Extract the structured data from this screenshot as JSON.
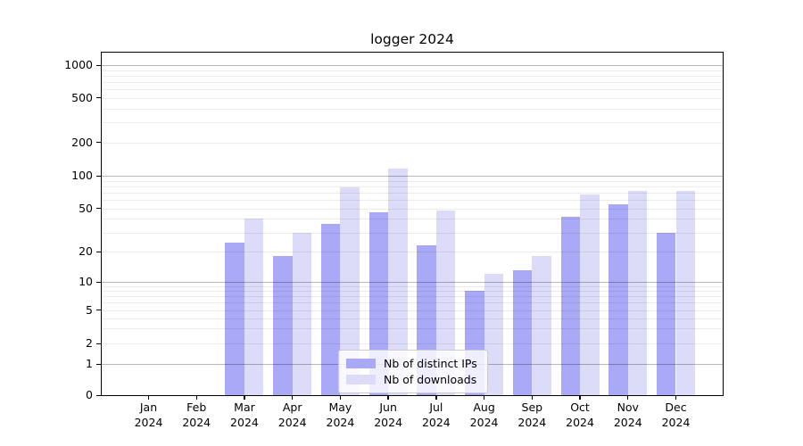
{
  "chart_data": {
    "type": "bar",
    "title": "logger 2024",
    "categories": [
      "Jan 2024",
      "Feb 2024",
      "Mar 2024",
      "Apr 2024",
      "May 2024",
      "Jun 2024",
      "Jul 2024",
      "Aug 2024",
      "Sep 2024",
      "Oct 2024",
      "Nov 2024",
      "Dec 2024"
    ],
    "series": [
      {
        "name": "Nb of distinct IPs",
        "color": "#a9a9f7",
        "values": [
          0,
          0,
          24,
          18,
          36,
          46,
          23,
          8,
          13,
          42,
          54,
          30
        ]
      },
      {
        "name": "Nb of downloads",
        "color": "#dcdcf9",
        "values": [
          0,
          0,
          40,
          30,
          78,
          115,
          48,
          12,
          18,
          67,
          73,
          72
        ]
      }
    ],
    "yaxis": {
      "scale": "symlog",
      "tick_labels": [
        "0",
        "1",
        "2",
        "5",
        "10",
        "20",
        "50",
        "100",
        "200",
        "500",
        "1000"
      ],
      "tick_values": [
        0,
        1,
        2,
        5,
        10,
        20,
        50,
        100,
        200,
        500,
        1000
      ],
      "ylim_top": 1300
    },
    "xlabel": "",
    "ylabel": "",
    "grid": "on",
    "legend_position": "lower center",
    "grid_minor_color": "#ececec",
    "grid_major_color": "#b8b8b8"
  }
}
